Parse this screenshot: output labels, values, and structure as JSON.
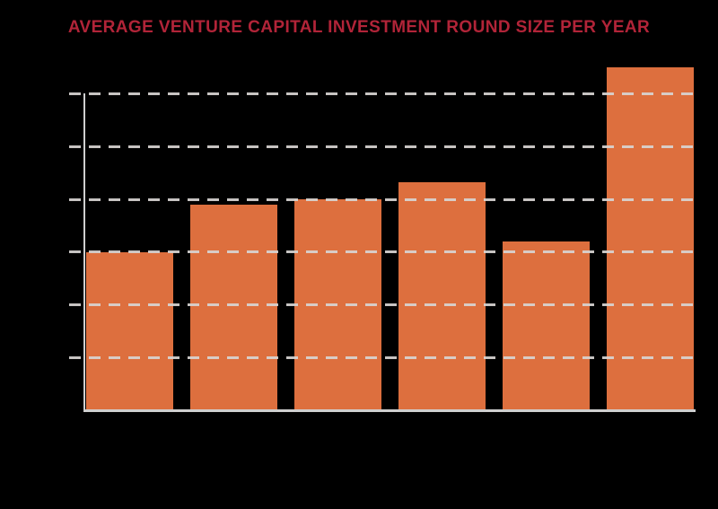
{
  "page": {
    "background_color": "#000000"
  },
  "header": {
    "title": "AVERAGE VENTURE CAPITAL INVESTMENT ROUND SIZE PER YEAR",
    "title_color": "#b12438"
  },
  "chart_data": {
    "type": "bar",
    "title": "AVERAGE VENTURE CAPITAL INVESTMENT ROUND SIZE PER YEAR",
    "categories": [
      "",
      "",
      "",
      "",
      "",
      ""
    ],
    "values": [
      3.0,
      3.9,
      4.0,
      4.33,
      3.2,
      6.5
    ],
    "xlabel": "",
    "ylabel": "",
    "ylim": [
      0,
      7
    ],
    "gridline_values": [
      1,
      2,
      3,
      4,
      5,
      6
    ],
    "grid_style": "dashed",
    "grid_over_bars": true,
    "legend_position": "none",
    "tick_labels_visible": false,
    "bar_count": 6,
    "bar_color": "#dd6f3e",
    "axis_color": "#cfcfcf",
    "gridline_color": "rgba(216,212,210,0.92)"
  }
}
